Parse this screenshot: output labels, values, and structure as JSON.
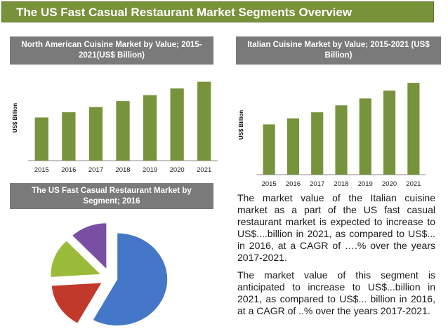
{
  "title": "The US Fast Casual Restaurant Market Segments Overview",
  "colors": {
    "title_bg": "#78923a",
    "panel_head_bg": "#7a7a7a",
    "bar": "#77933c",
    "pie": [
      "#4577c8",
      "#c0392b",
      "#9bbb3a",
      "#7a4fa3"
    ]
  },
  "panels": {
    "north_american_title": "North American Cuisine Market by Value; 2015-2021(US$ Billion)",
    "italian_title": "Italian Cuisine Market by Value; 2015-2021 (US$ Billion)",
    "segment_title": "The US Fast Casual Restaurant Market by Segment; 2016"
  },
  "chart_data": [
    {
      "type": "bar",
      "title": "North American Cuisine Market by Value; 2015-2021(US$ Billion)",
      "categories": [
        "2015",
        "2016",
        "2017",
        "2018",
        "2019",
        "2020",
        "2021"
      ],
      "values": [
        58,
        65,
        72,
        80,
        88,
        97,
        106
      ],
      "ylabel": "US$ Billion",
      "ylim": [
        0,
        115
      ],
      "grid": false
    },
    {
      "type": "bar",
      "title": "Italian Cuisine Market by Value; 2015-2021 (US$ Billion)",
      "categories": [
        "2015",
        "2016",
        "2017",
        "2018",
        "2019",
        "2020",
        "2021"
      ],
      "values": [
        58,
        65,
        72,
        80,
        88,
        97,
        106
      ],
      "ylabel": "US$ Billion",
      "ylim": [
        0,
        115
      ],
      "grid": false
    },
    {
      "type": "pie",
      "title": "The US Fast Casual Restaurant Market by Segment; 2016",
      "values": [
        58,
        16,
        14,
        12
      ],
      "exploded": true
    }
  ],
  "text": {
    "para1": "The market value of the Italian cuisine market as a part of the US fast casual restaurant market is expected to increase to US$....billion in 2021, as compared to US$... in 2016, at a CAGR of ….% over the years 2017-2021.",
    "para2": "The market value of this segment is anticipated to increase to US$...billion in 2021, as compared to US$... billion in 2016, at a CAGR of  ..% over the years 2017-2021."
  }
}
